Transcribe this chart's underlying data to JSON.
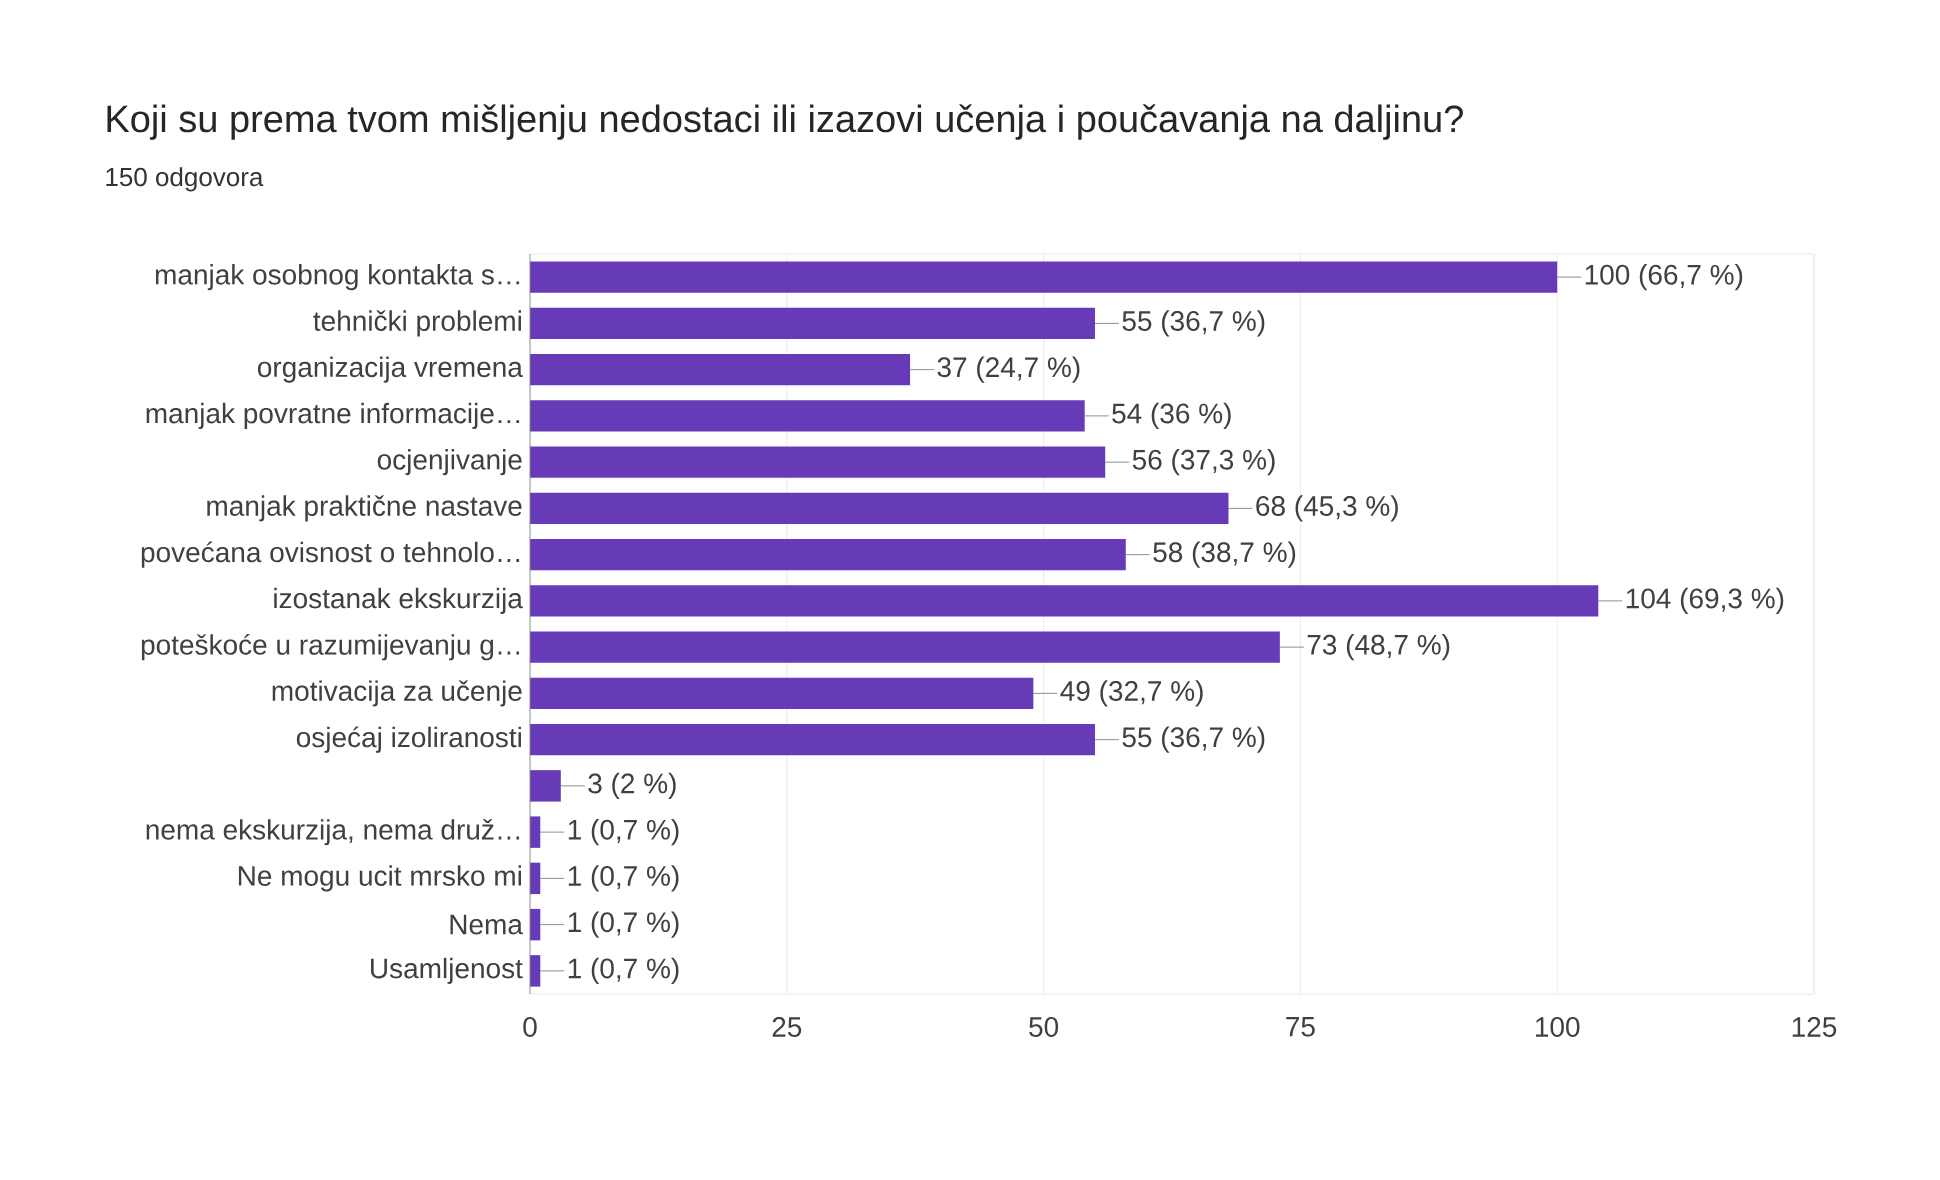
{
  "chart_data": {
    "type": "bar",
    "orientation": "horizontal",
    "title": "Koji su prema tvom mišljenju nedostaci ili izazovi učenja i poučavanja na daljinu?",
    "subtitle": "150 odgovora",
    "categories": [
      "manjak osobnog kontakta s…",
      "tehnički problemi",
      "organizacija vremena",
      "manjak povratne informacije…",
      "ocjenjivanje",
      "manjak praktične nastave",
      "povećana ovisnost o tehnolo…",
      "izostanak ekskurzija",
      "poteškoće u razumijevanju g…",
      "motivacija za učenje",
      "osjećaj izoliranosti",
      null,
      "nema ekskurzija, nema druž…",
      "Ne mogu ucit mrsko mi",
      "Nema",
      "Usamljenost"
    ],
    "values": [
      100,
      55,
      37,
      54,
      56,
      68,
      58,
      104,
      73,
      49,
      55,
      3,
      1,
      1,
      1,
      1
    ],
    "value_labels": [
      "100 (66,7 %)",
      "55 (36,7 %)",
      "37 (24,7 %)",
      "54 (36 %)",
      "56 (37,3 %)",
      "68 (45,3 %)",
      "58 (38,7 %)",
      "104 (69,3 %)",
      "73 (48,7 %)",
      "49 (32,7 %)",
      "55 (36,7 %)",
      "3 (2 %)",
      "1 (0,7 %)",
      "1 (0,7 %)",
      "1 (0,7 %)",
      "1 (0,7 %)"
    ],
    "color": "#673ab7",
    "xlim": [
      0,
      125
    ],
    "xticks": [
      0,
      25,
      50,
      75,
      100,
      125
    ],
    "grid": "x"
  }
}
